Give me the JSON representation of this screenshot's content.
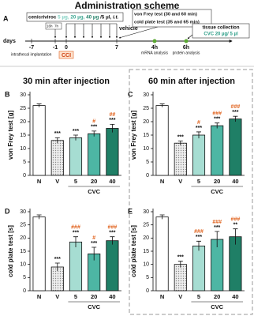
{
  "scheme": {
    "panel": "A",
    "title": "Administration scheme",
    "drug": "cenicriviroc",
    "doses": [
      "5 µg,",
      "20 µg,",
      "40 µg"
    ],
    "dose_unit": "/5 µl,",
    "route": "i.t.",
    "vehicle": "vehicle",
    "timer": [
      "16h",
      "7h"
    ],
    "days_label": "days",
    "days": [
      "-7",
      "-1",
      "0",
      "7"
    ],
    "implantation": "intrathecal implantation",
    "cci": "CCI",
    "tests": [
      "von Frey test (30 and 60 min)",
      "cold plate test (35 and 65 min)"
    ],
    "collection": "tissue collection",
    "collection_dose": "CVC 20 µg/ 5 µl",
    "times": [
      {
        "label": "4h",
        "note": "mRNA analysis"
      },
      {
        "label": "6h",
        "note": "protein analysis"
      }
    ]
  },
  "sections": [
    "30 min after injection",
    "60 min after injection"
  ],
  "chart_data": [
    {
      "type": "bar",
      "panel": "B",
      "y_label": "von Frey test [g]",
      "categories": [
        "N",
        "V",
        "5",
        "20",
        "40"
      ],
      "group_label": "CVC",
      "values": [
        26,
        13,
        14,
        15.5,
        17.5
      ],
      "errors": [
        0.6,
        1,
        1,
        1,
        1.5
      ],
      "colors": [
        "#ffffff",
        "#d8d8d8",
        "#a6ddd2",
        "#4db6a4",
        "#1f7f66"
      ],
      "stars": [
        null,
        "***",
        "***",
        "***",
        "***"
      ],
      "hashes": [
        null,
        null,
        null,
        "#",
        "##"
      ],
      "ylim": [
        0,
        30
      ],
      "yticks": [
        0,
        5,
        10,
        15,
        20,
        25,
        30
      ]
    },
    {
      "type": "bar",
      "panel": "C",
      "y_label": "von Frey test [g]",
      "categories": [
        "N",
        "V",
        "5",
        "20",
        "40"
      ],
      "group_label": "CVC",
      "values": [
        26,
        12,
        15,
        18.5,
        21
      ],
      "errors": [
        0.6,
        0.8,
        1.2,
        1,
        1
      ],
      "colors": [
        "#ffffff",
        "#d8d8d8",
        "#a6ddd2",
        "#4db6a4",
        "#1f7f66"
      ],
      "stars": [
        null,
        "***",
        "***",
        "***",
        "***"
      ],
      "hashes": [
        null,
        null,
        "#",
        "###",
        "###"
      ],
      "ylim": [
        0,
        30
      ],
      "yticks": [
        0,
        5,
        10,
        15,
        20,
        25,
        30
      ]
    },
    {
      "type": "bar",
      "panel": "D",
      "y_label": "cold plate test [s]",
      "categories": [
        "N",
        "V",
        "5",
        "20",
        "40"
      ],
      "group_label": "CVC",
      "values": [
        28,
        9,
        18.5,
        14,
        19
      ],
      "errors": [
        0.8,
        1.5,
        2,
        2.5,
        1.5
      ],
      "colors": [
        "#ffffff",
        "#d8d8d8",
        "#a6ddd2",
        "#4db6a4",
        "#1f7f66"
      ],
      "stars": [
        null,
        "***",
        "***",
        "***",
        "***"
      ],
      "hashes": [
        null,
        null,
        "###",
        "#",
        "###"
      ],
      "ylim": [
        0,
        30
      ],
      "yticks": [
        0,
        5,
        10,
        15,
        20,
        25,
        30
      ]
    },
    {
      "type": "bar",
      "panel": "E",
      "y_label": "cold plate test [s]",
      "categories": [
        "N",
        "V",
        "5",
        "20",
        "40"
      ],
      "group_label": "CVC",
      "values": [
        28,
        10,
        17,
        19.5,
        20.5
      ],
      "errors": [
        0.8,
        1.2,
        1.8,
        3,
        3
      ],
      "colors": [
        "#ffffff",
        "#d8d8d8",
        "#a6ddd2",
        "#4db6a4",
        "#1f7f66"
      ],
      "stars": [
        null,
        "***",
        "***",
        "***",
        "**"
      ],
      "hashes": [
        null,
        null,
        "###",
        "###",
        "###"
      ],
      "ylim": [
        0,
        30
      ],
      "yticks": [
        0,
        5,
        10,
        15,
        20,
        25,
        30
      ]
    }
  ]
}
